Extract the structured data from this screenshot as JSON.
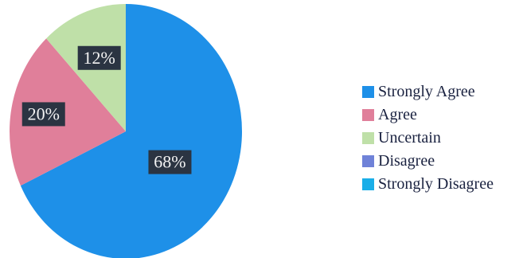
{
  "chart_data": {
    "type": "pie",
    "title": "",
    "legend_position": "right",
    "slices": [
      {
        "name": "Strongly Agree",
        "value": 68,
        "label": "68%",
        "color": "#1e90e8"
      },
      {
        "name": "Agree",
        "value": 20,
        "label": "20%",
        "color": "#e07f9a"
      },
      {
        "name": "Uncertain",
        "value": 12,
        "label": "12%",
        "color": "#bfe0a8"
      },
      {
        "name": "Disagree",
        "value": 0,
        "label": "",
        "color": "#6f82d8"
      },
      {
        "name": "Strongly Disagree",
        "value": 0,
        "label": "",
        "color": "#1aaee8"
      }
    ]
  }
}
